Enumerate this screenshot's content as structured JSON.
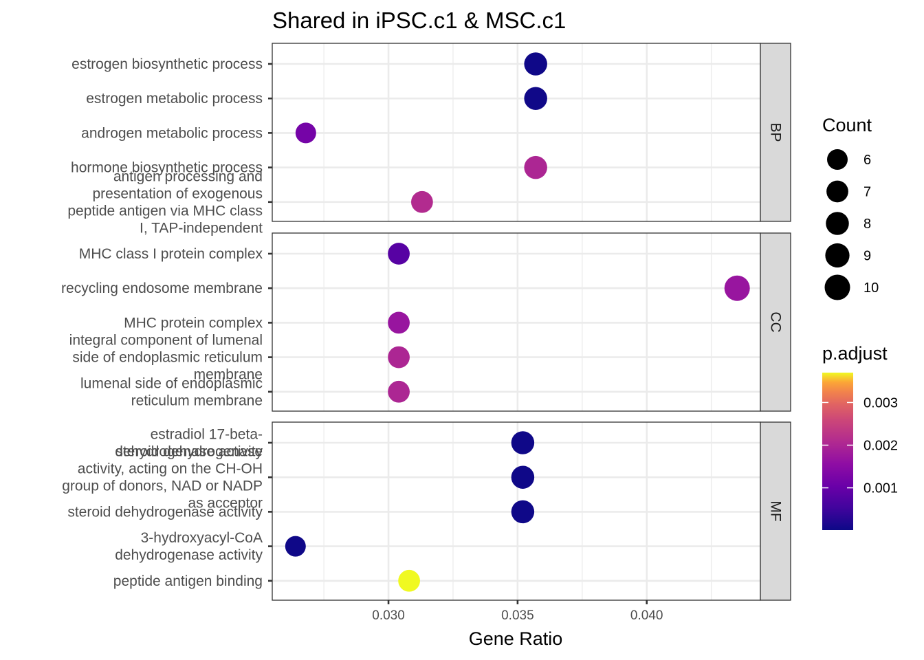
{
  "chart_data": {
    "type": "scatter",
    "title": "Shared in iPSC.c1 & MSC.c1",
    "xlabel": "Gene Ratio",
    "ylabel": "",
    "xlim": [
      0.0255,
      0.0444
    ],
    "xticks": [
      0.03,
      0.035,
      0.04
    ],
    "xtick_labels": [
      "0.030",
      "0.035",
      "0.040"
    ],
    "grid": true,
    "facets": [
      {
        "label": "BP",
        "terms": [
          {
            "label": [
              "estrogen biosynthetic process"
            ],
            "gene_ratio": 0.0357,
            "count": 8,
            "p_adjust": 3e-05
          },
          {
            "label": [
              "estrogen metabolic process"
            ],
            "gene_ratio": 0.0357,
            "count": 8,
            "p_adjust": 4e-05
          },
          {
            "label": [
              "androgen metabolic process"
            ],
            "gene_ratio": 0.0268,
            "count": 6,
            "p_adjust": 0.0012
          },
          {
            "label": [
              "hormone biosynthetic process"
            ],
            "gene_ratio": 0.0357,
            "count": 8,
            "p_adjust": 0.002
          },
          {
            "label": [
              "antigen processing and",
              "presentation of exogenous",
              "peptide antigen via MHC class",
              "I, TAP-independent"
            ],
            "gene_ratio": 0.0313,
            "count": 7,
            "p_adjust": 0.0021
          }
        ]
      },
      {
        "label": "CC",
        "terms": [
          {
            "label": [
              "MHC class I protein complex"
            ],
            "gene_ratio": 0.0304,
            "count": 7,
            "p_adjust": 0.0008
          },
          {
            "label": [
              "recycling endosome membrane"
            ],
            "gene_ratio": 0.0435,
            "count": 10,
            "p_adjust": 0.0017
          },
          {
            "label": [
              "MHC protein complex"
            ],
            "gene_ratio": 0.0304,
            "count": 7,
            "p_adjust": 0.0017
          },
          {
            "label": [
              "integral component of lumenal",
              "side of endoplasmic reticulum",
              "membrane"
            ],
            "gene_ratio": 0.0304,
            "count": 7,
            "p_adjust": 0.002
          },
          {
            "label": [
              "lumenal side of endoplasmic",
              "reticulum membrane"
            ],
            "gene_ratio": 0.0304,
            "count": 7,
            "p_adjust": 0.002
          }
        ]
      },
      {
        "label": "MF",
        "terms": [
          {
            "label": [
              "estradiol 17-beta-",
              "dehydrogenase activity"
            ],
            "gene_ratio": 0.0352,
            "count": 8,
            "p_adjust": 3e-05
          },
          {
            "label": [
              "steroid dehydrogenase",
              "activity, acting on the CH-OH",
              "group of donors, NAD or NADP",
              "as acceptor"
            ],
            "gene_ratio": 0.0352,
            "count": 8,
            "p_adjust": 3e-05
          },
          {
            "label": [
              "steroid dehydrogenase activity"
            ],
            "gene_ratio": 0.0352,
            "count": 8,
            "p_adjust": 3e-05
          },
          {
            "label": [
              "3-hydroxyacyl-CoA",
              "dehydrogenase activity"
            ],
            "gene_ratio": 0.0264,
            "count": 6,
            "p_adjust": 3e-05
          },
          {
            "label": [
              "peptide antigen binding"
            ],
            "gene_ratio": 0.0308,
            "count": 7,
            "p_adjust": 0.0037
          }
        ]
      }
    ],
    "legend_count": {
      "title": "Count",
      "values": [
        6,
        7,
        8,
        9,
        10
      ],
      "labels": [
        "6",
        "7",
        "8",
        "9",
        "10"
      ]
    },
    "legend_color": {
      "title": "p.adjust",
      "colormap": "plasma",
      "range": [
        1e-05,
        0.0037
      ],
      "ticks": [
        0.001,
        0.002,
        0.003
      ],
      "tick_labels": [
        "0.001",
        "0.002",
        "0.003"
      ]
    },
    "legend_position": "right"
  }
}
